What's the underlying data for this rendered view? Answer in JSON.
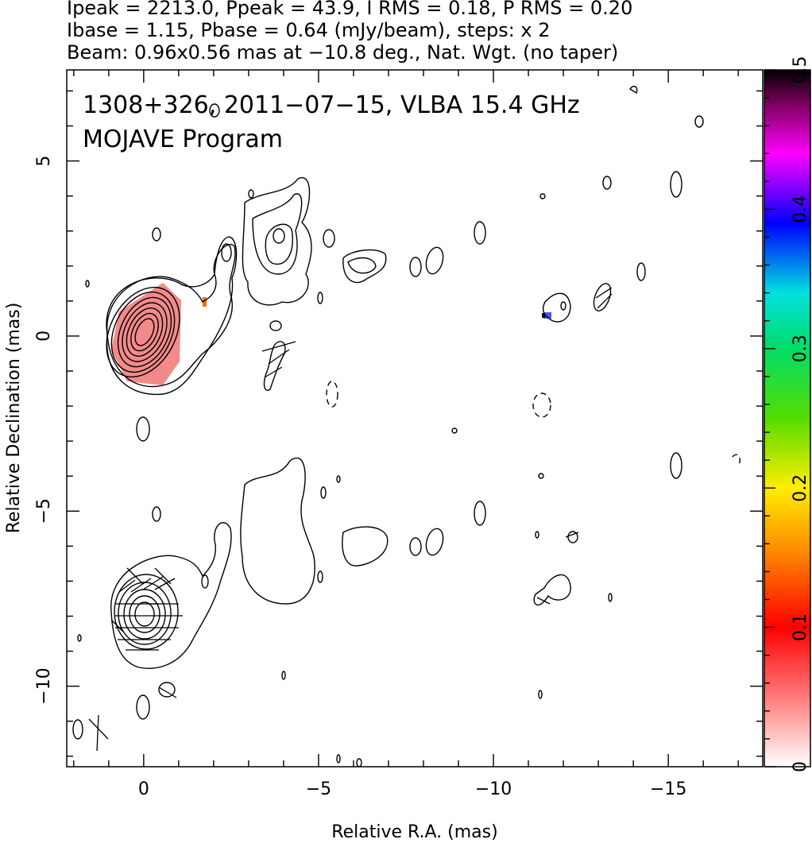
{
  "header": {
    "line1": "Ipeak = 2213.0, Ppeak = 43.9, I RMS = 0.18, P RMS = 0.20",
    "line2": "Ibase = 1.15, Pbase = 0.64 (mJy/beam), steps: x 2",
    "line3": "Beam: 0.96x0.56 mas at −10.8 deg., Nat. Wgt. (no taper)"
  },
  "chart_data": {
    "type": "contour",
    "title": "1308+326, 2011−07−15, VLBA 15.4 GHz",
    "subtitle": "MOJAVE Program",
    "xlabel": "Relative R.A. (mas)",
    "ylabel": "Relative Declination (mas)",
    "xlim": [
      2.2,
      -17.7
    ],
    "ylim": [
      -12.3,
      7.6
    ],
    "x_ticks": [
      0,
      -5,
      -10,
      -15
    ],
    "x_tick_labels": [
      "0",
      "−5",
      "−10",
      "−15"
    ],
    "y_ticks": [
      5,
      0,
      -5,
      -10
    ],
    "y_tick_labels": [
      "5",
      "0",
      "−5",
      "−10"
    ],
    "colorbar": {
      "range": [
        0,
        0.5
      ],
      "ticks": [
        0,
        0.1,
        0.2,
        0.3,
        0.4,
        0.5
      ],
      "tick_labels": [
        "0",
        "0.1",
        "0.2",
        "0.3",
        "0.4",
        "0.5"
      ]
    },
    "panels": [
      {
        "name": "Stokes I contours with fractional polarization",
        "core": [
          0,
          0
        ]
      },
      {
        "name": "Stokes I contours with EVPA sticks",
        "core": [
          0,
          -8.0
        ]
      }
    ],
    "colors": {
      "core_fill": "#f28a8a",
      "axis": "#000000"
    }
  }
}
